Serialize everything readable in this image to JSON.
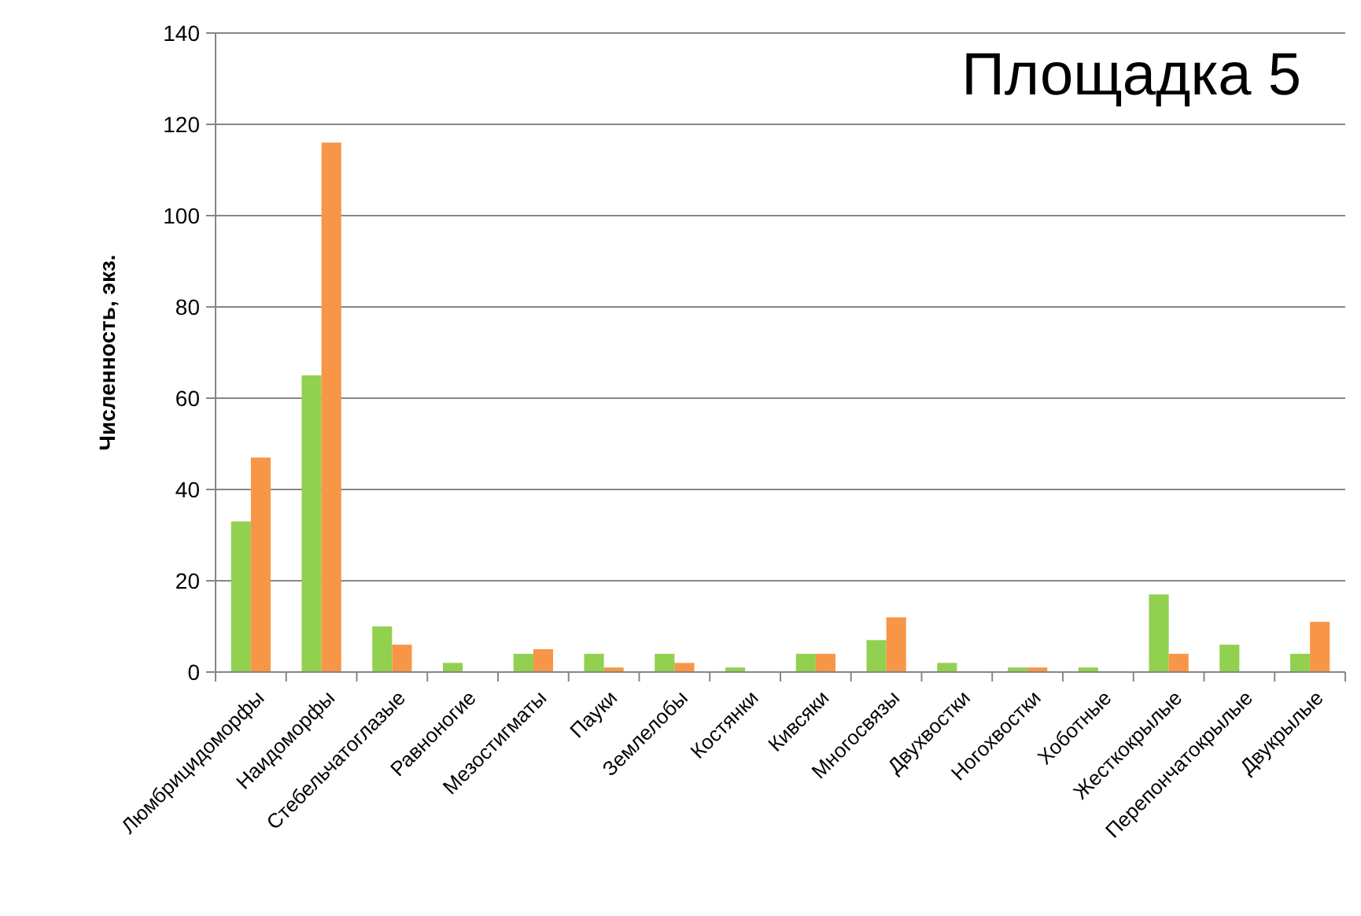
{
  "chart_data": {
    "type": "bar",
    "title": "Площадка 5",
    "ylabel": "Численность, экз.",
    "categories": [
      "Люмбрицидоморфы",
      "Наидоморфы",
      "Стебельчатоглазые",
      "Равноногие",
      "Мезостигматы",
      "Пауки",
      "Землелобы",
      "Костянки",
      "Кивсяки",
      "Многосвязы",
      "Двухвостки",
      "Ногохвостки",
      "Хоботные",
      "Жесткокрылые",
      "Перепончатокрылые",
      "Двукрылые"
    ],
    "series": [
      {
        "color": "#92d050",
        "values": [
          33,
          65,
          10,
          2,
          4,
          4,
          4,
          1,
          4,
          7,
          2,
          1,
          1,
          17,
          6,
          4
        ]
      },
      {
        "color": "#f79646",
        "values": [
          47,
          116,
          6,
          0,
          5,
          1,
          2,
          0,
          4,
          12,
          0,
          1,
          0,
          4,
          0,
          11
        ]
      }
    ],
    "ylim": [
      0,
      140
    ],
    "yticks": [
      0,
      20,
      40,
      60,
      80,
      100,
      120,
      140
    ],
    "grid": "y"
  }
}
